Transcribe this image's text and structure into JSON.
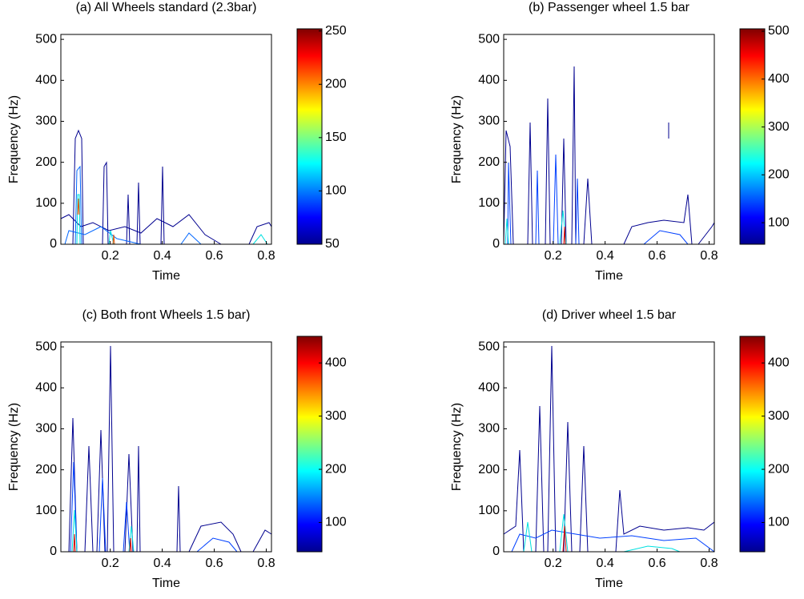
{
  "chart_data": [
    {
      "type": "contour",
      "title": "(a) All Wheels standard (2.3bar)",
      "xlabel": "Time",
      "ylabel": "Frequency (Hz)",
      "xlim": [
        0.01,
        0.82
      ],
      "xticks": [
        0.2,
        0.4,
        0.6,
        0.8
      ],
      "ylim": [
        0,
        512
      ],
      "yticks": [
        0,
        100,
        200,
        300,
        400,
        500
      ],
      "clim": [
        50,
        252
      ],
      "cticks": [
        50,
        100,
        150,
        200,
        250
      ]
    },
    {
      "type": "contour",
      "title": "(b) Passenger wheel 1.5 bar",
      "xlabel": "Time",
      "ylabel": "Frequency (Hz)",
      "xlim": [
        0.01,
        0.82
      ],
      "xticks": [
        0.2,
        0.4,
        0.6,
        0.8
      ],
      "ylim": [
        0,
        512
      ],
      "yticks": [
        0,
        100,
        200,
        300,
        400,
        500
      ],
      "clim": [
        55,
        505
      ],
      "cticks": [
        100,
        200,
        300,
        400,
        500
      ]
    },
    {
      "type": "contour",
      "title": "(c) Both front Wheels 1.5 bar)",
      "xlabel": "Time",
      "ylabel": "Frequency (Hz)",
      "xlim": [
        0.01,
        0.82
      ],
      "xticks": [
        0.2,
        0.4,
        0.6,
        0.8
      ],
      "ylim": [
        0,
        512
      ],
      "yticks": [
        0,
        100,
        200,
        300,
        400,
        500
      ],
      "clim": [
        45,
        450
      ],
      "cticks": [
        100,
        200,
        300,
        400
      ]
    },
    {
      "type": "contour",
      "title": "(d) Driver wheel 1.5 bar",
      "xlabel": "Time",
      "ylabel": "Frequency (Hz)",
      "xlim": [
        0.01,
        0.82
      ],
      "xticks": [
        0.2,
        0.4,
        0.6,
        0.8
      ],
      "ylim": [
        0,
        512
      ],
      "yticks": [
        0,
        100,
        200,
        300,
        400,
        500
      ],
      "clim": [
        45,
        450
      ],
      "cticks": [
        100,
        200,
        300,
        400
      ]
    }
  ]
}
